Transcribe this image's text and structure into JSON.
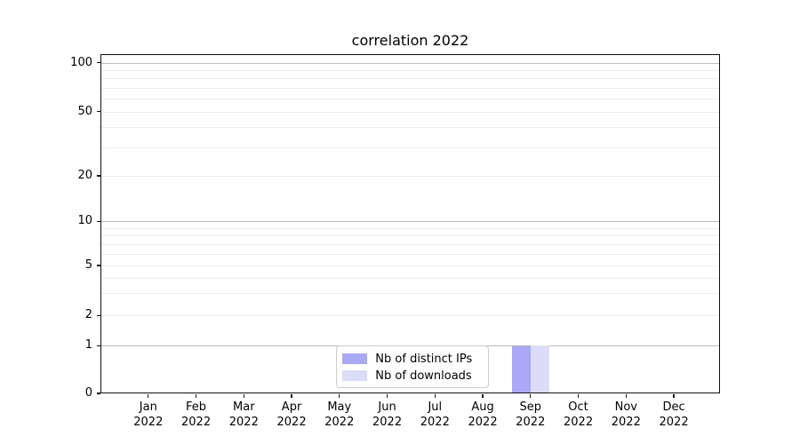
{
  "chart_data": {
    "type": "bar",
    "title": "correlation 2022",
    "categories": [
      "Jan 2022",
      "Feb 2022",
      "Mar 2022",
      "Apr 2022",
      "May 2022",
      "Jun 2022",
      "Jul 2022",
      "Aug 2022",
      "Sep 2022",
      "Oct 2022",
      "Nov 2022",
      "Dec 2022"
    ],
    "series": [
      {
        "name": "Nb of distinct IPs",
        "color": "#a9a9f6",
        "values": [
          0,
          0,
          0,
          0,
          0,
          0,
          0,
          0,
          1,
          0,
          0,
          0
        ]
      },
      {
        "name": "Nb of downloads",
        "color": "#dcdcf9",
        "values": [
          0,
          0,
          0,
          0,
          0,
          0,
          0,
          0,
          1,
          0,
          0,
          0
        ]
      }
    ],
    "xlabel": "",
    "ylabel": "",
    "yticks": [
      0,
      1,
      2,
      5,
      10,
      20,
      50,
      100
    ],
    "y_minor_gridlines": [
      2,
      3,
      4,
      5,
      6,
      7,
      8,
      9,
      20,
      30,
      40,
      50,
      60,
      70,
      80,
      90
    ],
    "y_major_gridlines": [
      1,
      10,
      100
    ],
    "ylim": [
      0,
      114
    ],
    "y_scale": "log-like with linear 0-1 segment",
    "grid": "horizontal major + minor",
    "legend_position": "inside lower center",
    "colors": {
      "background": "#ffffff",
      "text": "#000000",
      "axis_spine": "#101010",
      "grid_major": "#bcbcbc",
      "grid_minor": "#ececec",
      "legend_border": "#cccccc"
    }
  }
}
